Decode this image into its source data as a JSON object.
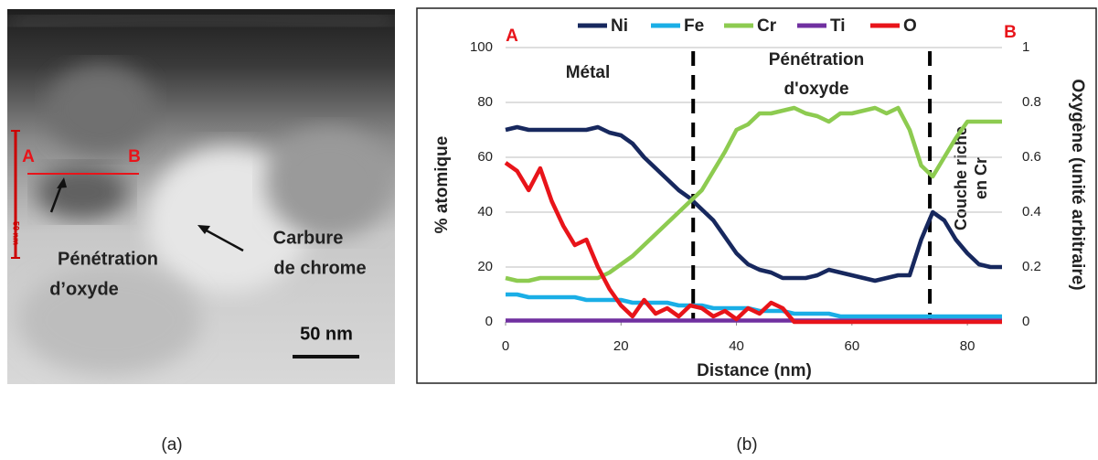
{
  "image_panel": {
    "point_a": "A",
    "point_b": "B",
    "scale_small": "50 nm",
    "label_oxide": [
      "Pénétration",
      "d’oxyde"
    ],
    "label_carbide": [
      "Carbure",
      "de chrome"
    ],
    "scale_bar": "50 nm"
  },
  "captions": [
    "(a)",
    "(b)"
  ],
  "chart_data": {
    "type": "line",
    "xlabel": "Distance (nm)",
    "ylabel": "% atomique",
    "y2label": "Oxygène (unité arbitraire)",
    "annotations": {
      "left_end": "A",
      "right_end": "B",
      "metal": "Métal",
      "oxide": [
        "Pénétration",
        "d'oxyde"
      ],
      "cr_layer": [
        "Couche riche",
        "en  Cr"
      ]
    },
    "vlines": [
      32.5,
      73.5
    ],
    "legend": "top",
    "xlim": [
      0,
      86
    ],
    "xticks": [
      0,
      20,
      40,
      60,
      80
    ],
    "ylim": [
      0,
      100
    ],
    "yticks": [
      0,
      20,
      40,
      60,
      80,
      100
    ],
    "y2lim": [
      0,
      1
    ],
    "y2ticks": [
      0,
      0.2,
      0.4,
      0.6,
      0.8,
      1
    ],
    "x": [
      0,
      2,
      4,
      6,
      8,
      10,
      12,
      14,
      16,
      18,
      20,
      22,
      24,
      26,
      28,
      30,
      32,
      34,
      36,
      38,
      40,
      42,
      44,
      46,
      48,
      50,
      52,
      54,
      56,
      58,
      60,
      62,
      64,
      66,
      68,
      70,
      72,
      74,
      76,
      78,
      80,
      82,
      84,
      86
    ],
    "series": [
      {
        "name": "Ni",
        "color": "#17285e",
        "values": [
          70,
          71,
          70,
          70,
          70,
          70,
          70,
          70,
          71,
          69,
          68,
          65,
          60,
          56,
          52,
          48,
          45,
          41,
          37,
          31,
          25,
          21,
          19,
          18,
          16,
          16,
          16,
          17,
          19,
          18,
          17,
          16,
          15,
          16,
          17,
          17,
          30,
          40,
          37,
          30,
          25,
          21,
          20,
          20
        ]
      },
      {
        "name": "Fe",
        "color": "#1aaee6",
        "values": [
          10,
          10,
          9,
          9,
          9,
          9,
          9,
          8,
          8,
          8,
          8,
          7,
          7,
          7,
          7,
          6,
          6,
          6,
          5,
          5,
          5,
          5,
          4,
          4,
          4,
          3,
          3,
          3,
          3,
          2,
          2,
          2,
          2,
          2,
          2,
          2,
          2,
          2,
          2,
          2,
          2,
          2,
          2,
          2
        ]
      },
      {
        "name": "Cr",
        "color": "#8dcb50",
        "values": [
          16,
          15,
          15,
          16,
          16,
          16,
          16,
          16,
          16,
          18,
          21,
          24,
          28,
          32,
          36,
          40,
          44,
          48,
          55,
          62,
          70,
          72,
          76,
          76,
          77,
          78,
          76,
          75,
          73,
          76,
          76,
          77,
          78,
          76,
          78,
          70,
          57,
          53,
          60,
          67,
          73,
          73,
          73,
          73
        ]
      },
      {
        "name": "Ti",
        "color": "#7030a0",
        "values": [
          0.5,
          0.5,
          0.5,
          0.5,
          0.5,
          0.5,
          0.5,
          0.5,
          0.5,
          0.5,
          0.5,
          0.5,
          0.5,
          0.5,
          0.5,
          0.5,
          0.5,
          0.5,
          0.5,
          0.5,
          0.5,
          0.5,
          0.5,
          0.5,
          0.5,
          0.5,
          0.5,
          0.5,
          0.5,
          0.5,
          0.5,
          0.5,
          0.5,
          0.5,
          0.5,
          0.5,
          0.5,
          0.5,
          0.5,
          0.5,
          0.5,
          0.5,
          0.5,
          0.5
        ]
      },
      {
        "name": "O",
        "color": "#e8141a",
        "axis": "y2",
        "values": [
          0.58,
          0.55,
          0.48,
          0.56,
          0.44,
          0.35,
          0.28,
          0.3,
          0.2,
          0.12,
          0.06,
          0.02,
          0.08,
          0.03,
          0.05,
          0.02,
          0.06,
          0.05,
          0.02,
          0.04,
          0.01,
          0.05,
          0.03,
          0.07,
          0.05,
          0,
          0,
          0,
          0,
          0,
          0,
          0,
          0,
          0,
          0,
          0,
          0,
          0,
          0,
          0,
          0,
          0,
          0,
          0
        ]
      }
    ]
  }
}
